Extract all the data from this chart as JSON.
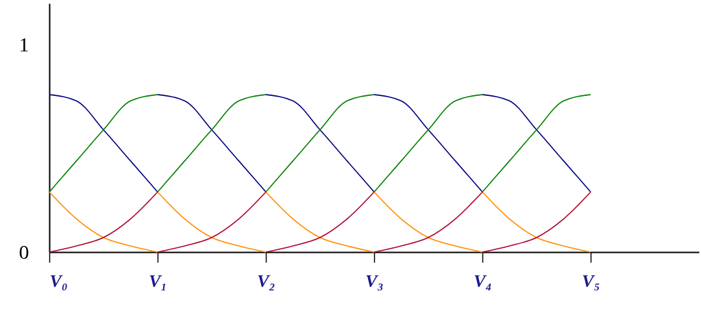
{
  "chart_data": {
    "type": "line",
    "categories": [
      "V₀",
      null,
      null,
      null,
      "V₁",
      null,
      null,
      null,
      "V₂",
      null,
      null,
      null,
      "V₃",
      null,
      null,
      null,
      "V₄",
      null,
      null,
      null,
      "V₅",
      null,
      null,
      null,
      null
    ],
    "series": [
      {
        "color": "#000080",
        "values": [
          0.76,
          0.73,
          0.59,
          0.44,
          0.29,
          null,
          null,
          null,
          null,
          null,
          null,
          null,
          null,
          null,
          null,
          null,
          null,
          null,
          null,
          null,
          null,
          null,
          null,
          null,
          null
        ]
      },
      {
        "color": "#000080",
        "values": [
          null,
          null,
          null,
          null,
          0.76,
          0.73,
          0.59,
          0.44,
          0.29,
          null,
          null,
          null,
          null,
          null,
          null,
          null,
          null,
          null,
          null,
          null,
          null,
          null,
          null,
          null,
          null
        ]
      },
      {
        "color": "#000080",
        "values": [
          null,
          null,
          null,
          null,
          null,
          null,
          null,
          null,
          0.76,
          0.73,
          0.59,
          0.44,
          0.29,
          null,
          null,
          null,
          null,
          null,
          null,
          null,
          null,
          null,
          null,
          null,
          null
        ]
      },
      {
        "color": "#000080",
        "values": [
          null,
          null,
          null,
          null,
          null,
          null,
          null,
          null,
          null,
          null,
          null,
          null,
          0.76,
          0.73,
          0.59,
          0.44,
          0.29,
          null,
          null,
          null,
          null,
          null,
          null,
          null,
          null
        ]
      },
      {
        "color": "#000080",
        "values": [
          null,
          null,
          null,
          null,
          null,
          null,
          null,
          null,
          null,
          null,
          null,
          null,
          null,
          null,
          null,
          null,
          0.76,
          0.73,
          0.59,
          0.44,
          0.29,
          null,
          null,
          null,
          null
        ]
      },
      {
        "color": "#008000",
        "values": [
          0.29,
          0.44,
          0.59,
          0.73,
          0.76,
          null,
          null,
          null,
          null,
          null,
          null,
          null,
          null,
          null,
          null,
          null,
          null,
          null,
          null,
          null,
          null,
          null,
          null,
          null,
          null
        ]
      },
      {
        "color": "#008000",
        "values": [
          null,
          null,
          null,
          null,
          0.29,
          0.44,
          0.59,
          0.73,
          0.76,
          null,
          null,
          null,
          null,
          null,
          null,
          null,
          null,
          null,
          null,
          null,
          null,
          null,
          null,
          null,
          null
        ]
      },
      {
        "color": "#008000",
        "values": [
          null,
          null,
          null,
          null,
          null,
          null,
          null,
          null,
          0.29,
          0.44,
          0.59,
          0.73,
          0.76,
          null,
          null,
          null,
          null,
          null,
          null,
          null,
          null,
          null,
          null,
          null,
          null
        ]
      },
      {
        "color": "#008000",
        "values": [
          null,
          null,
          null,
          null,
          null,
          null,
          null,
          null,
          null,
          null,
          null,
          null,
          0.29,
          0.44,
          0.59,
          0.73,
          0.76,
          null,
          null,
          null,
          null,
          null,
          null,
          null,
          null
        ]
      },
      {
        "color": "#008000",
        "values": [
          null,
          null,
          null,
          null,
          null,
          null,
          null,
          null,
          null,
          null,
          null,
          null,
          null,
          null,
          null,
          null,
          0.29,
          0.44,
          0.59,
          0.73,
          0.76,
          null,
          null,
          null,
          null
        ]
      },
      {
        "color": "#ff8c00",
        "values": [
          0.29,
          0.16,
          0.07,
          0.03,
          0,
          null,
          null,
          null,
          null,
          null,
          null,
          null,
          null,
          null,
          null,
          null,
          null,
          null,
          null,
          null,
          null,
          null,
          null,
          null,
          null
        ]
      },
      {
        "color": "#ff8c00",
        "values": [
          null,
          null,
          null,
          null,
          0.29,
          0.16,
          0.07,
          0.03,
          0,
          null,
          null,
          null,
          null,
          null,
          null,
          null,
          null,
          null,
          null,
          null,
          null,
          null,
          null,
          null,
          null
        ]
      },
      {
        "color": "#ff8c00",
        "values": [
          null,
          null,
          null,
          null,
          null,
          null,
          null,
          null,
          0.29,
          0.16,
          0.07,
          0.03,
          0,
          null,
          null,
          null,
          null,
          null,
          null,
          null,
          null,
          null,
          null,
          null,
          null
        ]
      },
      {
        "color": "#ff8c00",
        "values": [
          null,
          null,
          null,
          null,
          null,
          null,
          null,
          null,
          null,
          null,
          null,
          null,
          0.29,
          0.16,
          0.07,
          0.03,
          0,
          null,
          null,
          null,
          null,
          null,
          null,
          null,
          null
        ]
      },
      {
        "color": "#ff8c00",
        "values": [
          null,
          null,
          null,
          null,
          null,
          null,
          null,
          null,
          null,
          null,
          null,
          null,
          null,
          null,
          null,
          null,
          0.29,
          0.16,
          0.07,
          0.03,
          0,
          null,
          null,
          null,
          null
        ]
      },
      {
        "color": "#b0002a",
        "values": [
          0,
          0.03,
          0.07,
          0.16,
          0.29,
          null,
          null,
          null,
          null,
          null,
          null,
          null,
          null,
          null,
          null,
          null,
          null,
          null,
          null,
          null,
          null,
          null,
          null,
          null,
          null
        ]
      },
      {
        "color": "#b0002a",
        "values": [
          null,
          null,
          null,
          null,
          0,
          0.03,
          0.07,
          0.16,
          0.29,
          null,
          null,
          null,
          null,
          null,
          null,
          null,
          null,
          null,
          null,
          null,
          null,
          null,
          null,
          null,
          null
        ]
      },
      {
        "color": "#b0002a",
        "values": [
          null,
          null,
          null,
          null,
          null,
          null,
          null,
          null,
          0,
          0.03,
          0.07,
          0.16,
          0.29,
          null,
          null,
          null,
          null,
          null,
          null,
          null,
          null,
          null,
          null,
          null,
          null
        ]
      },
      {
        "color": "#b0002a",
        "values": [
          null,
          null,
          null,
          null,
          null,
          null,
          null,
          null,
          null,
          null,
          null,
          null,
          0,
          0.03,
          0.07,
          0.16,
          0.29,
          null,
          null,
          null,
          null,
          null,
          null,
          null,
          null
        ]
      },
      {
        "color": "#b0002a",
        "values": [
          null,
          null,
          null,
          null,
          null,
          null,
          null,
          null,
          null,
          null,
          null,
          null,
          null,
          null,
          null,
          null,
          0,
          0.03,
          0.07,
          0.16,
          0.29,
          null,
          null,
          null,
          null
        ]
      }
    ],
    "ylim": [
      0,
      1.2
    ],
    "yticks": [
      0,
      1
    ],
    "grid": false
  }
}
